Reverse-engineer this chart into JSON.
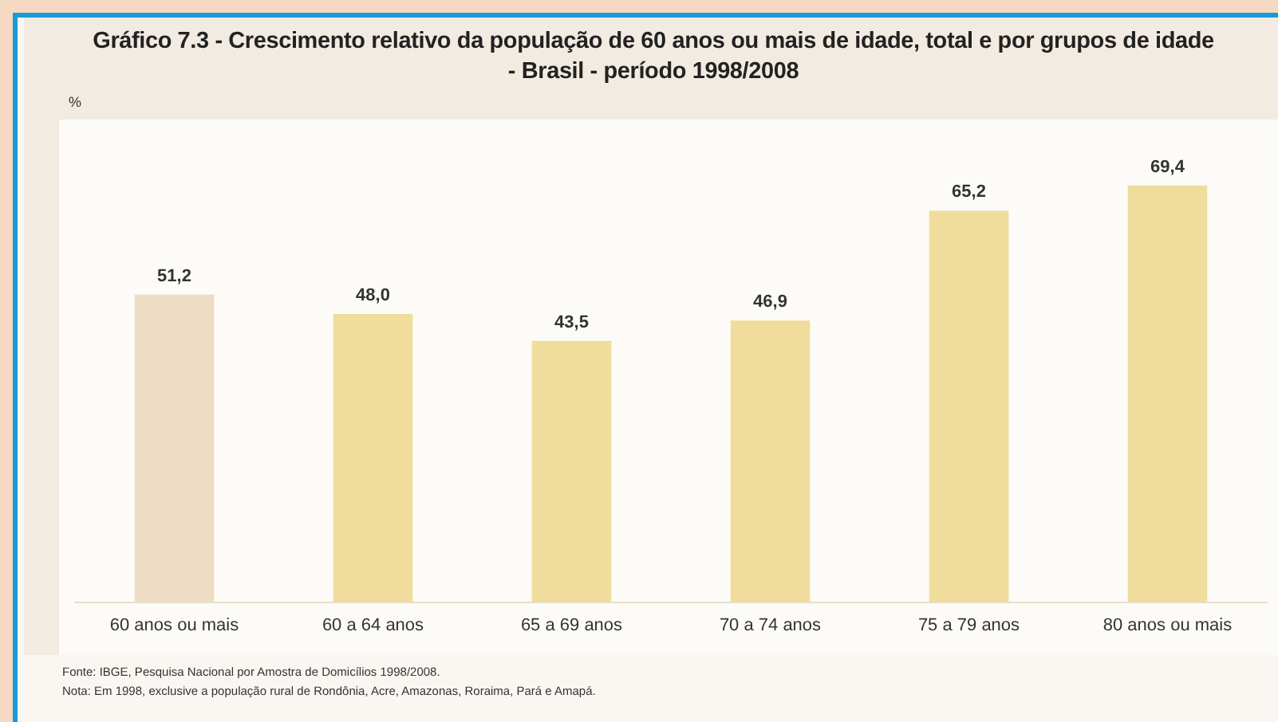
{
  "chart_data": {
    "type": "bar",
    "title": "Gráfico 7.3 - Crescimento relativo da população de 60 anos ou mais de idade, total e por grupos de idade - Brasil - período 1998/2008",
    "categories": [
      "60 anos ou mais",
      "60 a 64 anos",
      "65 a 69 anos",
      "70 a 74 anos",
      "75 a 79 anos",
      "80 anos ou mais"
    ],
    "values": [
      51.2,
      48.0,
      43.5,
      46.9,
      65.2,
      69.4
    ],
    "value_labels": [
      "51,2",
      "48,0",
      "43,5",
      "46,9",
      "65,2",
      "69,4"
    ],
    "colors": [
      "#efdcc4",
      "#f0dc9c",
      "#f0dc9c",
      "#f0dc9c",
      "#f0dc9c",
      "#f0dc9c"
    ],
    "grid": false,
    "legend": false,
    "tick_labels": "x",
    "annotations": [
      "%",
      "Fonte: IBGE, Pesquisa Nacional por Amostra de Domicílios 1998/2008.",
      "Nota: Em 1998, exclusive a população rural de Rondônia, Acre, Amazonas, Roraima, Pará e Amapá."
    ]
  }
}
